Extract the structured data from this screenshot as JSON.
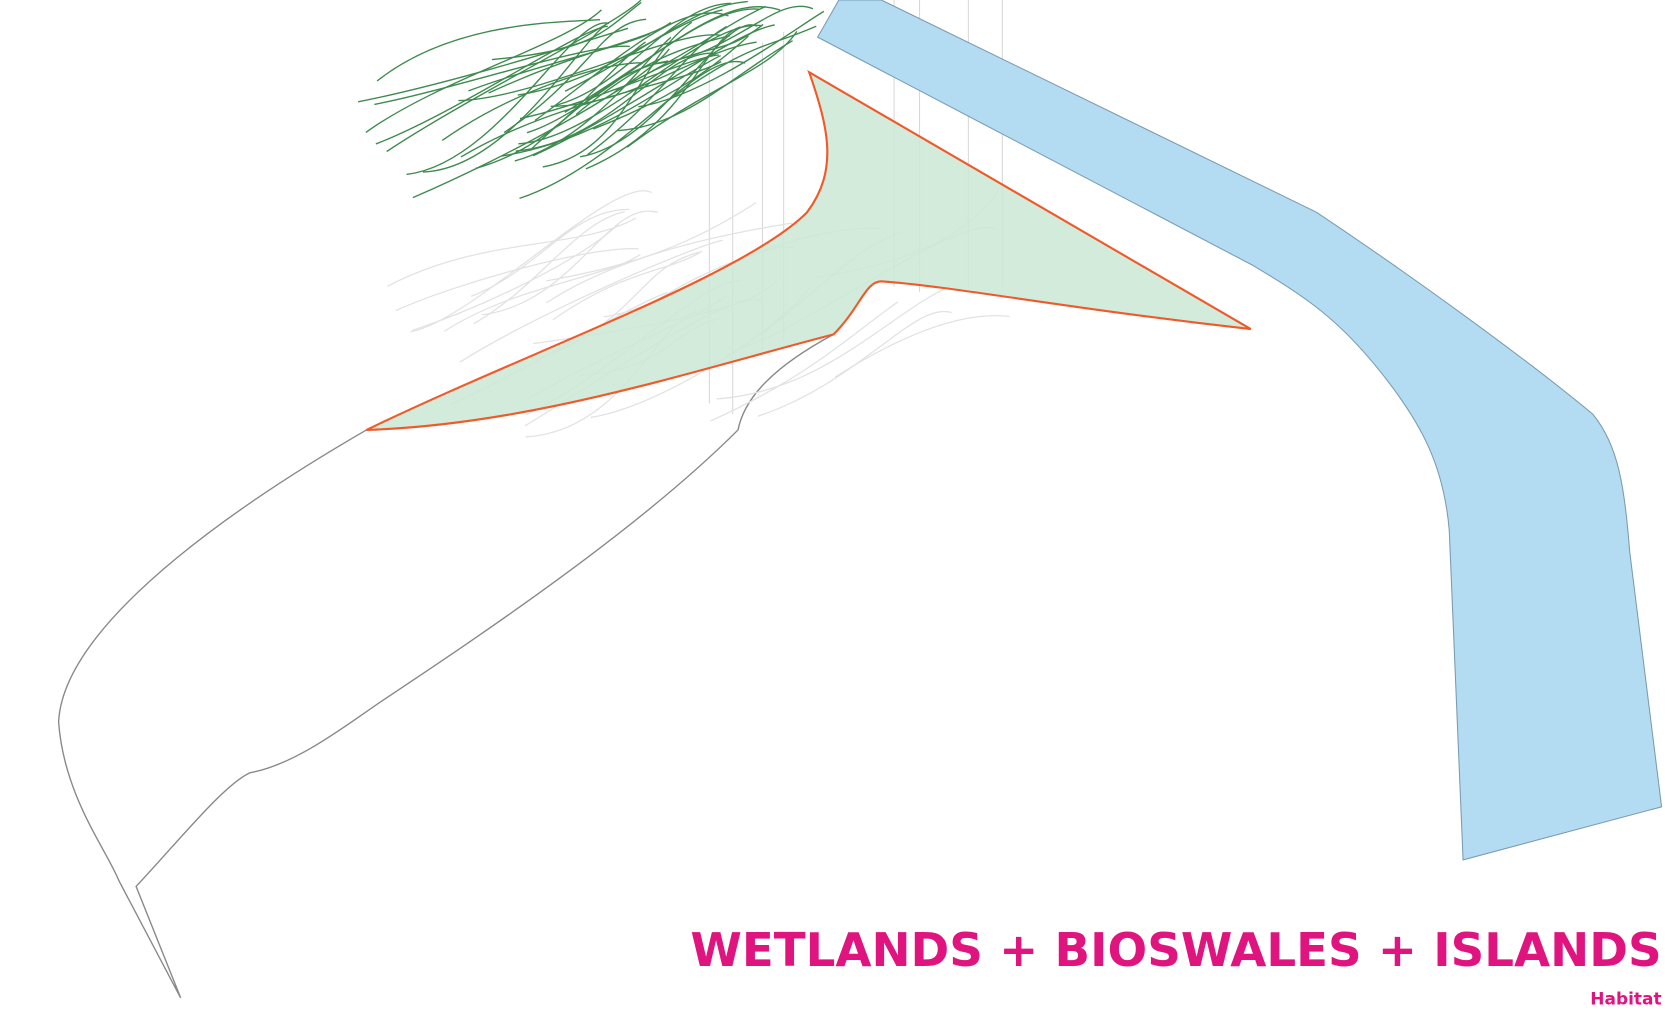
{
  "title": "WETLANDS + BIOSWALES + ISLANDS",
  "subtitle": "Habitat"
}
